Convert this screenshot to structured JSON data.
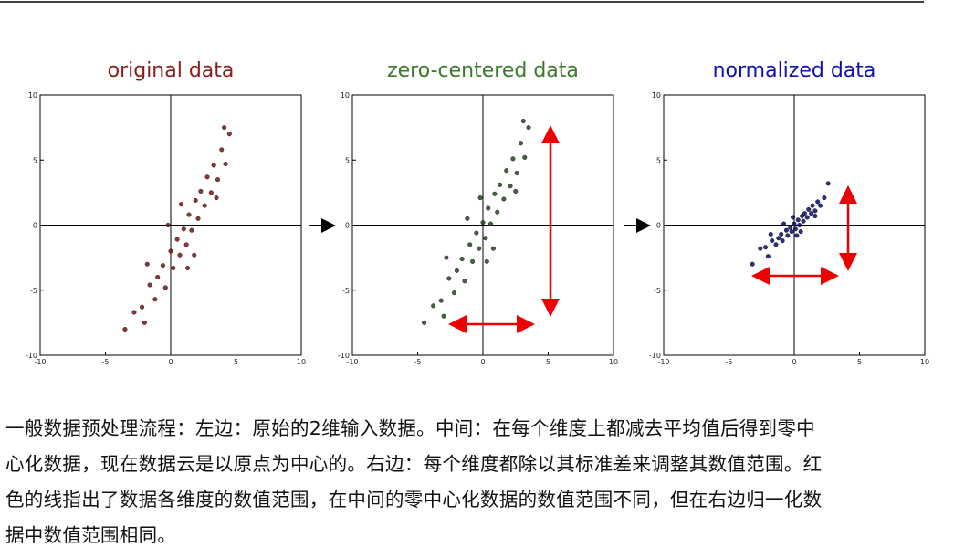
{
  "chart_data": [
    {
      "type": "scatter",
      "title": "original data",
      "color": "#7a1414",
      "title_color": "#8b1a1a",
      "x": [
        -3.5,
        -2.8,
        -2.2,
        -2,
        -1.6,
        -1.2,
        -1,
        -0.6,
        -0.4,
        0,
        0.2,
        0.5,
        0.7,
        1,
        1.2,
        1.4,
        1.6,
        1.9,
        2.1,
        2.3,
        2.6,
        2.8,
        3.1,
        3.3,
        3.6,
        3.9,
        4.2,
        4.5,
        4.1,
        -1.8,
        3.5,
        -0.2,
        1.8,
        0.8,
        1.3
      ],
      "y": [
        -8,
        -6.7,
        -6.3,
        -7.5,
        -4.6,
        -5.7,
        -4,
        -3.1,
        -4.8,
        -2,
        -3.3,
        -1.1,
        -2.3,
        -0.3,
        -1.5,
        0.8,
        -0.4,
        1.9,
        0.5,
        2.6,
        1.5,
        3.7,
        2.5,
        4.6,
        3.5,
        5.8,
        4.7,
        7,
        7.5,
        -3,
        2.1,
        0,
        -2.3,
        1.6,
        -3.3
      ],
      "xlim": [
        -10,
        10
      ],
      "ylim": [
        -10,
        10
      ],
      "xticks": [
        -10,
        -5,
        0,
        5,
        10
      ],
      "yticks": [
        -10,
        -5,
        0,
        5,
        10
      ]
    },
    {
      "type": "scatter",
      "title": "zero-centered data",
      "color": "#24491f",
      "title_color": "#3a7a2a",
      "x": [
        -4.5,
        -3.8,
        -3.2,
        -3,
        -2.6,
        -2.2,
        -2,
        -1.6,
        -1.4,
        -1,
        -0.8,
        -0.5,
        -0.3,
        0,
        0.2,
        0.4,
        0.6,
        0.9,
        1.1,
        1.3,
        1.6,
        1.8,
        2.1,
        2.3,
        2.6,
        2.9,
        3.2,
        3.5,
        3.1,
        -2.8,
        2.5,
        -1.2,
        0.8,
        -0.2,
        0.3
      ],
      "y": [
        -7.5,
        -6.2,
        -5.8,
        -7,
        -4.1,
        -5.2,
        -3.5,
        -2.6,
        -4.3,
        -1.5,
        -2.8,
        -0.6,
        -1.8,
        0.2,
        -1,
        1.3,
        0.1,
        2.4,
        1,
        3.1,
        2,
        4.2,
        3,
        5.1,
        4,
        6.3,
        5.2,
        7.5,
        8,
        -2.5,
        2.6,
        0.5,
        -1.8,
        2.1,
        -2.8
      ],
      "xlim": [
        -10,
        10
      ],
      "ylim": [
        -10,
        10
      ],
      "xticks": [
        -10,
        -5,
        0,
        5,
        10
      ],
      "yticks": [
        -10,
        -5,
        0,
        5,
        10
      ]
    },
    {
      "type": "scatter",
      "title": "normalized data",
      "color": "#0a0a6e",
      "title_color": "#1010b0",
      "x": [
        -3.2,
        -2.6,
        -2.2,
        -2,
        -1.7,
        -1.4,
        -1.2,
        -1,
        -0.9,
        -0.6,
        -0.5,
        -0.3,
        -0.2,
        0,
        0.1,
        0.3,
        0.4,
        0.6,
        0.7,
        0.8,
        1,
        1.1,
        1.3,
        1.4,
        1.6,
        1.8,
        2,
        2.3,
        2.6,
        -1.8,
        1.6,
        -0.8,
        0.5,
        -0.1,
        0.2
      ],
      "y": [
        -3,
        -1.8,
        -1.7,
        -2.4,
        -1.2,
        -1.5,
        -1,
        -0.7,
        -1.2,
        -0.4,
        -0.8,
        -0.2,
        -0.5,
        0.1,
        -0.3,
        0.4,
        0,
        0.7,
        0.3,
        0.9,
        0.6,
        1.2,
        0.9,
        1.5,
        1.1,
        1.8,
        1.5,
        2.1,
        3.2,
        -0.7,
        0.7,
        0.1,
        -0.5,
        0.6,
        -0.8
      ],
      "xlim": [
        -10,
        10
      ],
      "ylim": [
        -10,
        10
      ],
      "xticks": [
        -10,
        -5,
        0,
        5,
        10
      ],
      "yticks": [
        -10,
        -5,
        0,
        5,
        10
      ]
    }
  ],
  "caption": [
    "一般数据预处理流程：左边：原始的2维输入数据。中间：在每个维度上都减去平均值后得到零中",
    "心化数据，现在数据云是以原点为中心的。右边：每个维度都除以其标准差来调整其数值范围。红",
    "色的线指出了数据各维度的数值范围，在中间的零中心化数据的数值范围不同，但在右边归一化数",
    "据中数值范围相同。"
  ]
}
